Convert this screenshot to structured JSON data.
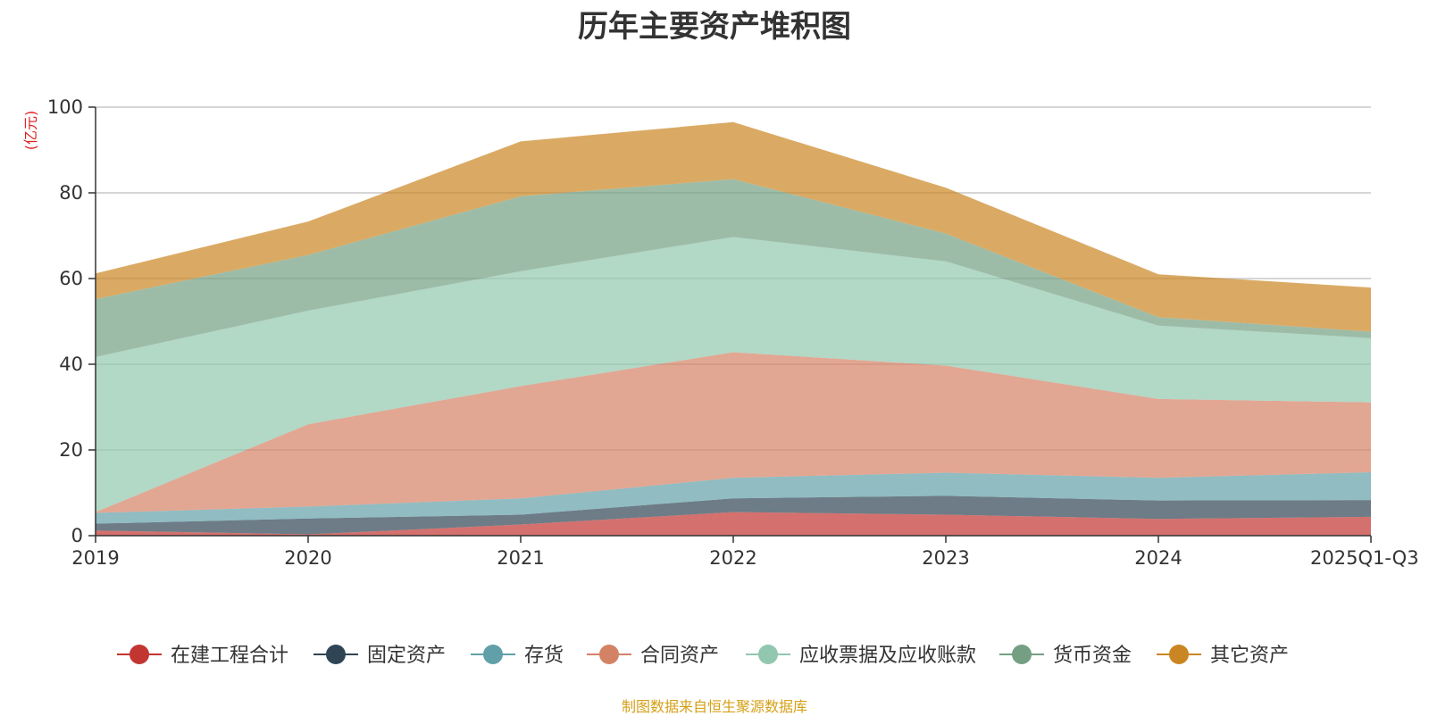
{
  "chart_data": {
    "type": "area",
    "stacked": true,
    "title": "历年主要资产堆积图",
    "unit": "(亿元)",
    "categories": [
      "2019",
      "2020",
      "2021",
      "2022",
      "2023",
      "2024",
      "2025Q1-Q3"
    ],
    "ylim": [
      0,
      100
    ],
    "yticks": [
      0,
      20,
      40,
      60,
      80,
      100
    ],
    "grid": true,
    "legend_position": "bottom",
    "series": [
      {
        "name": "在建工程合计",
        "color": "#c23531",
        "values": [
          1.2,
          0.3,
          2.6,
          5.5,
          4.9,
          3.9,
          4.4
        ]
      },
      {
        "name": "固定资产",
        "color": "#2f4554",
        "values": [
          1.6,
          3.7,
          2.3,
          3.2,
          4.4,
          4.3,
          3.9
        ]
      },
      {
        "name": "存货",
        "color": "#61a0a8",
        "values": [
          2.5,
          2.8,
          3.8,
          4.8,
          5.4,
          5.3,
          6.5
        ]
      },
      {
        "name": "合同资产",
        "color": "#d48265",
        "values": [
          0.2,
          19.2,
          26.2,
          29.3,
          25.0,
          18.4,
          16.3
        ]
      },
      {
        "name": "应收票据及应收账款",
        "color": "#91c7ae",
        "values": [
          36.2,
          26.5,
          26.8,
          26.9,
          24.3,
          17.1,
          15.0
        ]
      },
      {
        "name": "货币资金",
        "color": "#749f83",
        "values": [
          13.5,
          13.0,
          17.5,
          13.5,
          6.5,
          2.0,
          1.5
        ]
      },
      {
        "name": "其它资产",
        "color": "#ca8622",
        "values": [
          6.0,
          7.8,
          12.8,
          13.3,
          10.7,
          10.0,
          10.3
        ]
      }
    ]
  },
  "footer": {
    "source": "制图数据来自恒生聚源数据库"
  }
}
